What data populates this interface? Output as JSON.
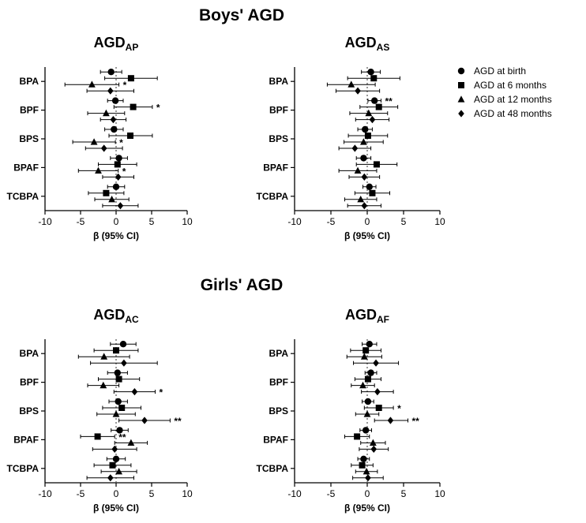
{
  "sections": [
    {
      "title": "Boys' AGD"
    },
    {
      "title": "Girls' AGD"
    }
  ],
  "legend": {
    "items": [
      {
        "label": "AGD at birth",
        "marker": "circle"
      },
      {
        "label": "AGD at 6 months",
        "marker": "square"
      },
      {
        "label": "AGD at 12 months",
        "marker": "triangle"
      },
      {
        "label": "AGD at 48 months",
        "marker": "diamond"
      }
    ]
  },
  "colors": {
    "marker": "#000000",
    "axis": "#000000",
    "zero_line": "#555555"
  },
  "chart_data": [
    {
      "type": "scatter",
      "title_main": "AGD",
      "title_sub": "AP",
      "xlabel": "β (95% CI)",
      "xlim": [
        -10,
        10
      ],
      "xticks": [
        -10,
        -5,
        0,
        5,
        10
      ],
      "categories": [
        "BPA",
        "BPF",
        "BPS",
        "BPAF",
        "TCBPA"
      ],
      "series": [
        {
          "name": "AGD at birth",
          "marker": "circle",
          "est": [
            -0.7,
            -0.1,
            -0.3,
            0.4,
            0.0
          ],
          "lo": [
            -2.2,
            -1.2,
            -1.6,
            -0.8,
            -1.2
          ],
          "hi": [
            0.8,
            1.0,
            1.0,
            1.6,
            1.2
          ],
          "sig": [
            "",
            "",
            "",
            "",
            ""
          ]
        },
        {
          "name": "AGD at 6 months",
          "marker": "square",
          "est": [
            2.1,
            2.4,
            2.0,
            0.2,
            -1.4
          ],
          "lo": [
            -1.6,
            -0.3,
            -1.0,
            -2.5,
            -3.9
          ],
          "hi": [
            5.8,
            5.1,
            5.1,
            2.9,
            1.1
          ],
          "sig": [
            "",
            "*",
            "",
            "",
            ""
          ]
        },
        {
          "name": "AGD at 12 months",
          "marker": "triangle",
          "est": [
            -3.4,
            -1.4,
            -3.1,
            -2.5,
            -0.6
          ],
          "lo": [
            -7.2,
            -4.0,
            -6.1,
            -5.3,
            -3.0
          ],
          "hi": [
            0.4,
            1.2,
            -0.1,
            0.3,
            1.8
          ],
          "sig": [
            "*",
            "",
            "*",
            "*",
            ""
          ]
        },
        {
          "name": "AGD at 48 months",
          "marker": "diamond",
          "est": [
            -0.8,
            -0.4,
            -1.7,
            0.3,
            0.6
          ],
          "lo": [
            -4.1,
            -2.2,
            -4.3,
            -1.9,
            -1.9
          ],
          "hi": [
            2.5,
            1.4,
            0.9,
            2.5,
            3.1
          ],
          "sig": [
            "",
            "",
            "",
            "",
            ""
          ]
        }
      ]
    },
    {
      "type": "scatter",
      "title_main": "AGD",
      "title_sub": "AS",
      "xlabel": "β (95% CI)",
      "xlim": [
        -10,
        10
      ],
      "xticks": [
        -10,
        -5,
        0,
        5,
        10
      ],
      "categories": [
        "BPA",
        "BPF",
        "BPS",
        "BPAF",
        "TCBPA"
      ],
      "series": [
        {
          "name": "AGD at birth",
          "marker": "circle",
          "est": [
            0.5,
            1.0,
            -0.3,
            -0.5,
            0.3
          ],
          "lo": [
            -0.8,
            0.1,
            -1.3,
            -1.5,
            -0.6
          ],
          "hi": [
            1.8,
            1.9,
            0.7,
            0.5,
            1.2
          ],
          "sig": [
            "",
            "**",
            "",
            "",
            ""
          ]
        },
        {
          "name": "AGD at 6 months",
          "marker": "square",
          "est": [
            0.9,
            1.6,
            0.1,
            1.3,
            0.7
          ],
          "lo": [
            -2.7,
            -1.0,
            -2.6,
            -1.5,
            -1.7
          ],
          "hi": [
            4.5,
            4.2,
            2.8,
            4.1,
            3.1
          ],
          "sig": [
            "",
            "",
            "",
            "",
            ""
          ]
        },
        {
          "name": "AGD at 12 months",
          "marker": "triangle",
          "est": [
            -2.2,
            0.2,
            -0.5,
            -1.3,
            -0.9
          ],
          "lo": [
            -5.5,
            -2.4,
            -3.2,
            -3.9,
            -3.1
          ],
          "hi": [
            1.1,
            2.8,
            2.2,
            1.3,
            1.3
          ],
          "sig": [
            "",
            "",
            "",
            "",
            ""
          ]
        },
        {
          "name": "AGD at 48 months",
          "marker": "diamond",
          "est": [
            -1.3,
            0.7,
            -1.7,
            -0.4,
            -0.4
          ],
          "lo": [
            -4.3,
            -1.6,
            -3.9,
            -2.5,
            -2.7
          ],
          "hi": [
            1.7,
            3.0,
            0.5,
            1.7,
            1.9
          ],
          "sig": [
            "",
            "",
            "",
            "",
            ""
          ]
        }
      ]
    },
    {
      "type": "scatter",
      "title_main": "AGD",
      "title_sub": "AC",
      "xlabel": "β (95% CI)",
      "xlim": [
        -10,
        10
      ],
      "xticks": [
        -10,
        -5,
        0,
        5,
        10
      ],
      "categories": [
        "BPA",
        "BPF",
        "BPS",
        "BPAF",
        "TCBPA"
      ],
      "series": [
        {
          "name": "AGD at birth",
          "marker": "circle",
          "est": [
            1.0,
            0.2,
            0.3,
            0.5,
            0.0
          ],
          "lo": [
            -0.8,
            -1.2,
            -1.0,
            -0.7,
            -1.3
          ],
          "hi": [
            2.8,
            1.6,
            1.6,
            1.7,
            1.3
          ],
          "sig": [
            "",
            "",
            "",
            "",
            ""
          ]
        },
        {
          "name": "AGD at 6 months",
          "marker": "square",
          "est": [
            0.0,
            0.4,
            0.8,
            -2.6,
            -0.5
          ],
          "lo": [
            -3.1,
            -2.5,
            -1.9,
            -5.0,
            -3.1
          ],
          "hi": [
            3.1,
            3.3,
            3.5,
            -0.2,
            2.1
          ],
          "sig": [
            "",
            "",
            "",
            "**",
            ""
          ]
        },
        {
          "name": "AGD at 12 months",
          "marker": "triangle",
          "est": [
            -1.7,
            -1.8,
            0.0,
            2.1,
            0.4
          ],
          "lo": [
            -5.3,
            -4.0,
            -2.7,
            -0.2,
            -2.1
          ],
          "hi": [
            1.9,
            0.4,
            2.7,
            4.4,
            2.9
          ],
          "sig": [
            "",
            "",
            "",
            "",
            ""
          ]
        },
        {
          "name": "AGD at 48 months",
          "marker": "diamond",
          "est": [
            1.1,
            2.6,
            4.0,
            -0.2,
            -0.8
          ],
          "lo": [
            -3.6,
            -0.3,
            0.4,
            -3.3,
            -4.1
          ],
          "hi": [
            5.8,
            5.5,
            7.6,
            2.9,
            2.5
          ],
          "sig": [
            "",
            "*",
            "**",
            "",
            ""
          ]
        }
      ]
    },
    {
      "type": "scatter",
      "title_main": "AGD",
      "title_sub": "AF",
      "xlabel": "β (95% CI)",
      "xlim": [
        -10,
        10
      ],
      "xticks": [
        -10,
        -5,
        0,
        5,
        10
      ],
      "categories": [
        "BPA",
        "BPF",
        "BPS",
        "BPAF",
        "TCBPA"
      ],
      "series": [
        {
          "name": "AGD at birth",
          "marker": "circle",
          "est": [
            0.3,
            0.5,
            0.1,
            -0.2,
            -0.5
          ],
          "lo": [
            -0.7,
            -0.3,
            -0.7,
            -1.0,
            -1.3
          ],
          "hi": [
            1.3,
            1.3,
            0.9,
            0.6,
            0.3
          ],
          "sig": [
            "",
            "",
            "",
            "",
            ""
          ]
        },
        {
          "name": "AGD at 6 months",
          "marker": "square",
          "est": [
            -0.2,
            0.1,
            1.6,
            -1.4,
            -0.7
          ],
          "lo": [
            -2.3,
            -1.7,
            -0.4,
            -3.1,
            -2.2
          ],
          "hi": [
            1.9,
            1.9,
            3.6,
            0.3,
            0.8
          ],
          "sig": [
            "",
            "",
            "*",
            "",
            ""
          ]
        },
        {
          "name": "AGD at 12 months",
          "marker": "triangle",
          "est": [
            -0.4,
            -0.6,
            0.0,
            0.8,
            -0.1
          ],
          "lo": [
            -2.8,
            -2.2,
            -1.6,
            -0.9,
            -1.6
          ],
          "hi": [
            2.0,
            1.0,
            1.6,
            2.5,
            1.4
          ],
          "sig": [
            "",
            "",
            "",
            "",
            ""
          ]
        },
        {
          "name": "AGD at 48 months",
          "marker": "diamond",
          "est": [
            1.2,
            1.4,
            3.2,
            0.9,
            0.1
          ],
          "lo": [
            -1.9,
            -0.8,
            1.0,
            -1.1,
            -2.0
          ],
          "hi": [
            4.3,
            3.6,
            5.6,
            2.9,
            2.2
          ],
          "sig": [
            "",
            "",
            "**",
            "",
            ""
          ]
        }
      ]
    }
  ]
}
